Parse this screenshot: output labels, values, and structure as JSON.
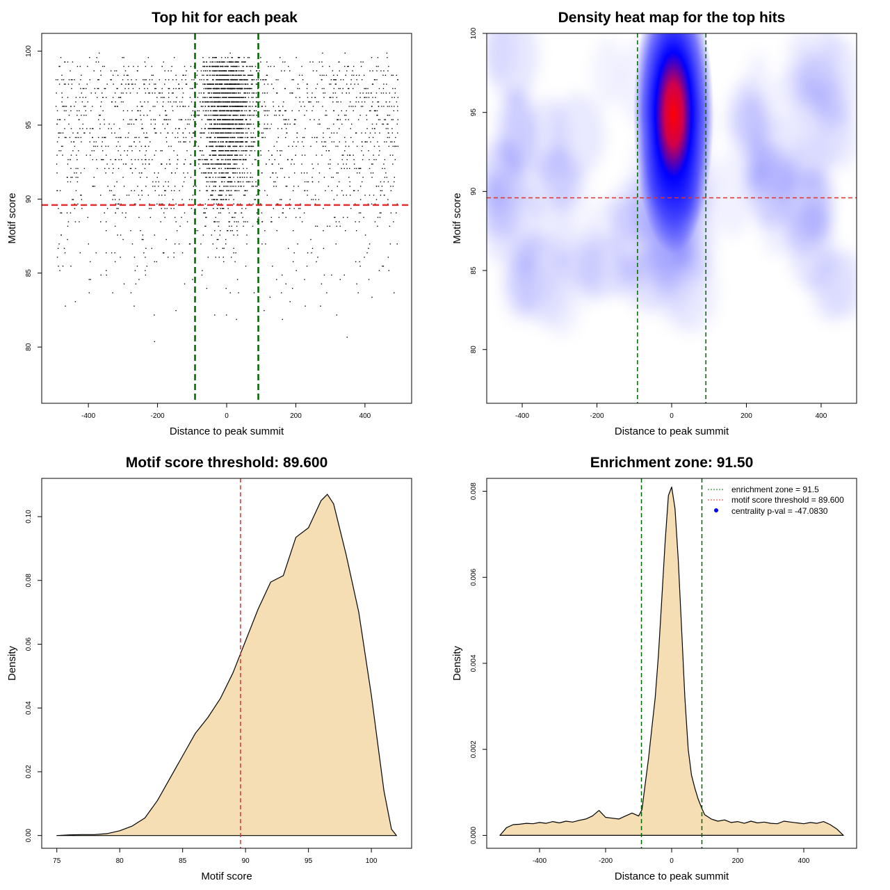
{
  "chart_data": [
    {
      "id": "scatter",
      "type": "scatter",
      "title": "Top hit for each peak",
      "xlabel": "Distance to peak summit",
      "ylabel": "Motif score",
      "xlim": [
        -535,
        535
      ],
      "ylim": [
        76.2,
        101.2
      ],
      "xticks": [
        "-400",
        "-200",
        "0",
        "200",
        "400"
      ],
      "yticks": [
        "80",
        "85",
        "90",
        "95",
        "100"
      ],
      "hlines": [
        {
          "y": 89.6,
          "color": "#e03030",
          "style": "dashed"
        }
      ],
      "vlines": [
        {
          "x": -91.5,
          "color": "#006400",
          "style": "dashed"
        },
        {
          "x": 91.5,
          "color": "#006400",
          "style": "dashed"
        }
      ],
      "point_color": "#000000",
      "grid": false
    },
    {
      "id": "heatmap",
      "type": "heatmap",
      "title": "Density heat map for the top hits",
      "xlabel": "Distance to peak summit",
      "ylabel": "Motif score",
      "xlim": [
        -495,
        495
      ],
      "ylim": [
        76.6,
        100
      ],
      "xticks": [
        "-400",
        "-200",
        "0",
        "200",
        "400"
      ],
      "yticks": [
        "80",
        "85",
        "90",
        "95",
        "100"
      ],
      "hot_spot": {
        "x": 5,
        "y": 96.6
      },
      "hlines": [
        {
          "y": 89.6,
          "color": "#e03030",
          "style": "dashed"
        }
      ],
      "vlines": [
        {
          "x": -91.5,
          "color": "#006400",
          "style": "dashed"
        },
        {
          "x": 91.5,
          "color": "#006400",
          "style": "dashed"
        }
      ],
      "colors": [
        "#ffffff",
        "#0000ff",
        "#ff0000"
      ]
    },
    {
      "id": "score-density",
      "type": "area",
      "title": "Motif score threshold: 89.600",
      "xlabel": "Motif score",
      "ylabel": "Density",
      "xlim": [
        73.8,
        103.2
      ],
      "ylim": [
        -0.004,
        0.112
      ],
      "xticks": [
        "75",
        "80",
        "85",
        "90",
        "95",
        "100"
      ],
      "yticks": [
        "0.00",
        "0.02",
        "0.04",
        "0.06",
        "0.08",
        "0.10"
      ],
      "x": [
        75,
        76,
        77,
        78,
        79,
        80,
        81,
        82,
        83,
        84,
        85,
        86,
        87,
        88,
        89,
        90,
        91,
        92,
        93,
        94,
        95,
        96,
        96.5,
        97,
        98,
        99,
        100,
        101,
        101.6,
        102
      ],
      "y": [
        0,
        0.0002,
        0.0003,
        0.0003,
        0.0006,
        0.0015,
        0.003,
        0.0055,
        0.011,
        0.018,
        0.025,
        0.032,
        0.037,
        0.043,
        0.051,
        0.061,
        0.071,
        0.0795,
        0.0815,
        0.0935,
        0.0965,
        0.105,
        0.107,
        0.104,
        0.088,
        0.07,
        0.044,
        0.014,
        0.002,
        0
      ],
      "vlines": [
        {
          "x": 89.6,
          "color": "#e03030",
          "style": "dashed"
        }
      ],
      "fill": "#f5deb3",
      "stroke": "#000000"
    },
    {
      "id": "distance-density",
      "type": "area",
      "title": "Enrichment zone: 91.50",
      "xlabel": "Distance to peak summit",
      "ylabel": "Density",
      "xlim": [
        -560,
        560
      ],
      "ylim": [
        -0.0003,
        0.0083
      ],
      "xticks": [
        "-400",
        "-200",
        "0",
        "200",
        "400"
      ],
      "yticks": [
        "0.000",
        "0.002",
        "0.004",
        "0.006",
        "0.008"
      ],
      "x": [
        -520,
        -500,
        -480,
        -460,
        -440,
        -420,
        -400,
        -380,
        -360,
        -340,
        -320,
        -300,
        -280,
        -260,
        -240,
        -220,
        -200,
        -180,
        -160,
        -140,
        -120,
        -100,
        -90,
        -80,
        -70,
        -60,
        -50,
        -40,
        -30,
        -20,
        -10,
        0,
        10,
        20,
        30,
        40,
        50,
        60,
        70,
        80,
        90,
        100,
        120,
        140,
        160,
        180,
        200,
        220,
        240,
        260,
        280,
        300,
        320,
        340,
        360,
        380,
        400,
        420,
        440,
        460,
        480,
        500,
        520
      ],
      "y": [
        0,
        0.00018,
        0.00025,
        0.00026,
        0.00028,
        0.00027,
        0.0003,
        0.00028,
        0.00032,
        0.00029,
        0.00033,
        0.00031,
        0.00035,
        0.00038,
        0.00045,
        0.00058,
        0.00042,
        0.0004,
        0.00038,
        0.00045,
        0.00052,
        0.00045,
        0.0006,
        0.0012,
        0.0018,
        0.0025,
        0.0032,
        0.0042,
        0.0055,
        0.0068,
        0.0079,
        0.0081,
        0.0076,
        0.0064,
        0.0048,
        0.0032,
        0.002,
        0.0014,
        0.0011,
        0.00085,
        0.00065,
        0.00048,
        0.00038,
        0.00033,
        0.00036,
        0.0003,
        0.00032,
        0.00028,
        0.00033,
        0.00029,
        0.00031,
        0.00028,
        0.00027,
        0.00033,
        0.00031,
        0.00029,
        0.00027,
        0.0003,
        0.00028,
        0.00032,
        0.00025,
        0.00015,
        0
      ],
      "vlines": [
        {
          "x": -91.5,
          "color": "#006400",
          "style": "dashed"
        },
        {
          "x": 91.5,
          "color": "#006400",
          "style": "dashed"
        }
      ],
      "fill": "#f5deb3",
      "stroke": "#000000",
      "legend": {
        "placement": "top-right",
        "entries": [
          {
            "label": "enrichment zone = 91.5",
            "color": "#006400",
            "marker": "dotted-line"
          },
          {
            "label": "motif score threshold = 89.600",
            "color": "#e03030",
            "marker": "dotted-line"
          },
          {
            "label": "centrality p-val = -47.0830",
            "color": "#0000ff",
            "marker": "dot"
          }
        ]
      }
    }
  ]
}
